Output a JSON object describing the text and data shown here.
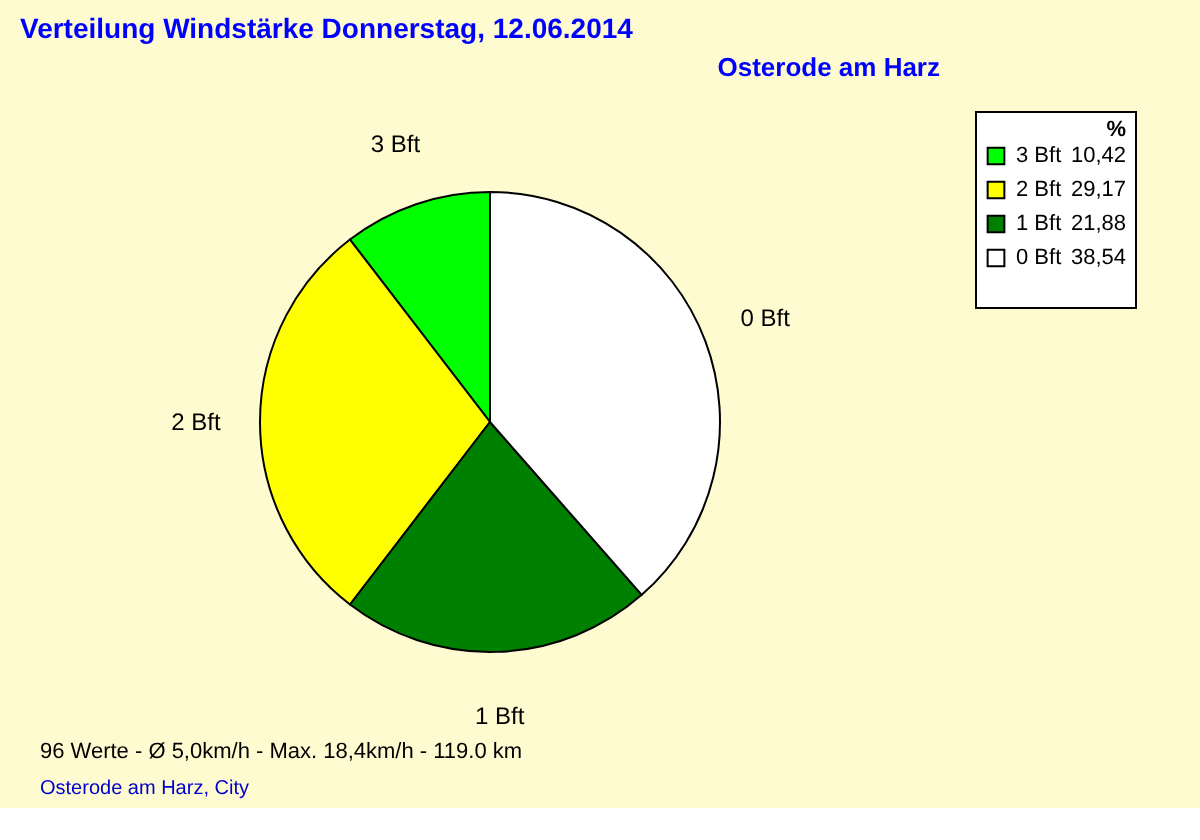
{
  "chart_data": {
    "type": "pie",
    "title": "Verteilung Windstärke  Donnerstag, 12.06.2014",
    "subtitle": "Osterode am Harz",
    "legend_title": "%",
    "categories": [
      "3 Bft",
      "2 Bft",
      "1 Bft",
      "0 Bft"
    ],
    "values": [
      10.42,
      29.17,
      21.88,
      38.54
    ],
    "value_labels": [
      "10,42",
      "29,17",
      "21,88",
      "38,54"
    ],
    "colors": [
      "#00ff00",
      "#ffff00",
      "#008000",
      "#ffffff"
    ],
    "legend": "top right",
    "annotations": [
      "96 Werte   -   Ø 5,0km/h  -  Max. 18,4km/h   -   119.0 km",
      "Osterode am Harz, City"
    ]
  }
}
